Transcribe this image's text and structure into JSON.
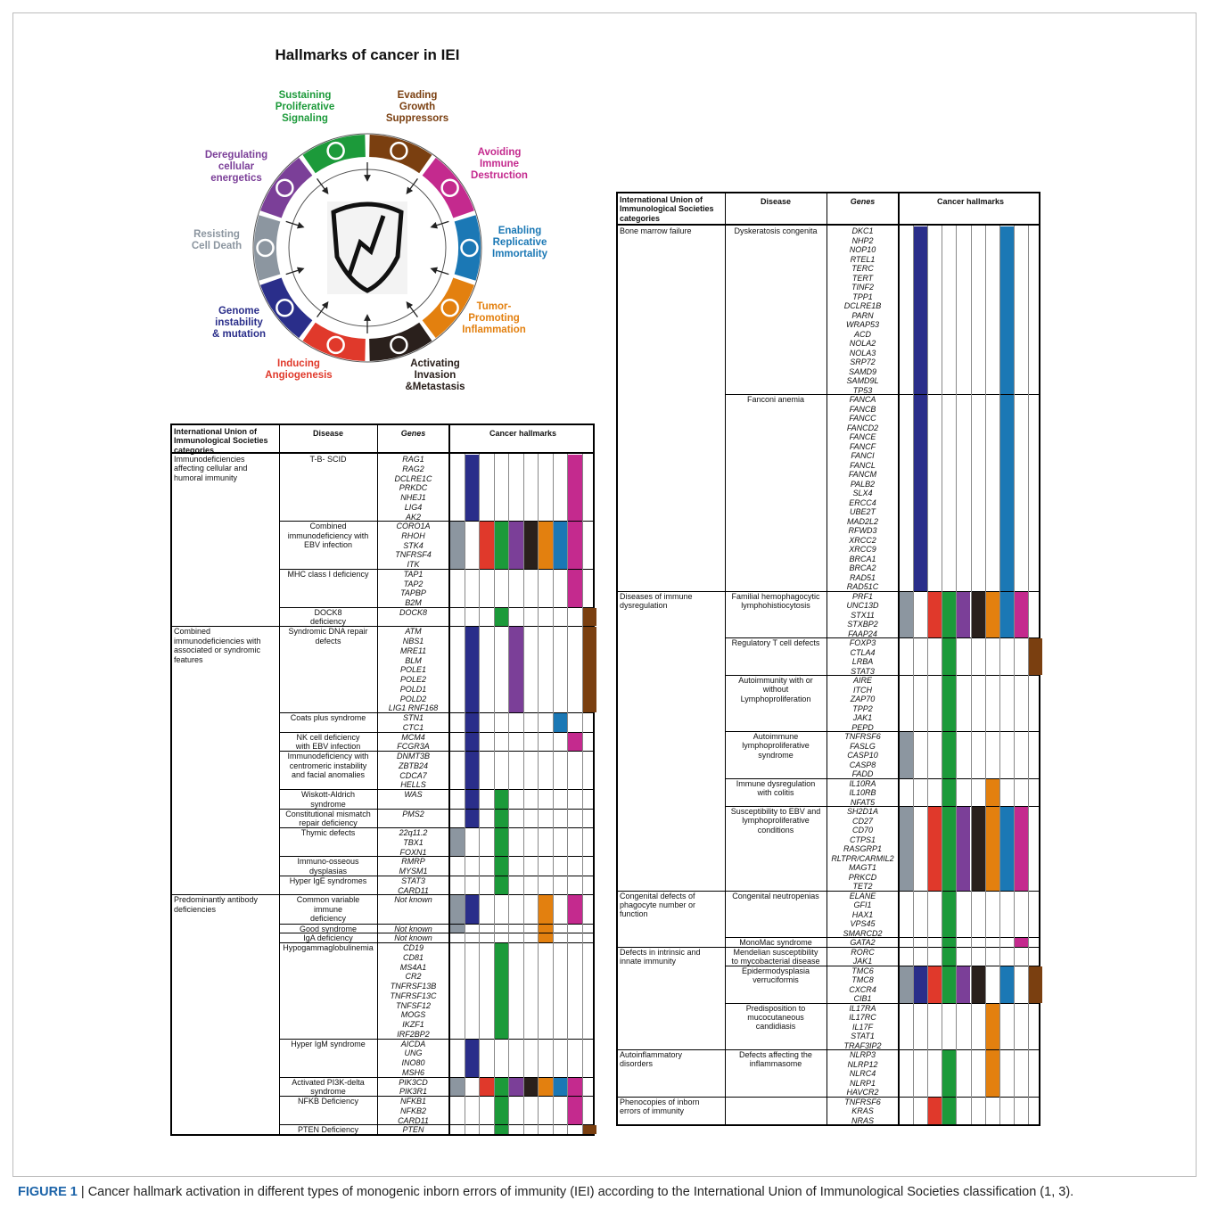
{
  "wheel": {
    "title": "Hallmarks of cancer in IEI",
    "hallmarks": [
      {
        "lines": [
          "Sustaining",
          "Proliferative",
          "Signaling"
        ],
        "color": "#1c9a3a"
      },
      {
        "lines": [
          "Evading",
          "Growth",
          "Suppressors"
        ],
        "color": "#7a3f10"
      },
      {
        "lines": [
          "Avoiding",
          "Immune",
          "Destruction"
        ],
        "color": "#c42a8e"
      },
      {
        "lines": [
          "Enabling",
          "Replicative",
          "Immortality"
        ],
        "color": "#1b78b5"
      },
      {
        "lines": [
          "Tumor-",
          "Promoting",
          "Inflammation"
        ],
        "color": "#e3800f"
      },
      {
        "lines": [
          "Activating",
          "Invasion",
          "&Metastasis"
        ],
        "color": "#2a201c"
      },
      {
        "lines": [
          "Inducing",
          "Angiogenesis"
        ],
        "color": "#e0392b"
      },
      {
        "lines": [
          "Genome",
          "instability",
          "& mutation"
        ],
        "color": "#2a2e8a"
      },
      {
        "lines": [
          "Resisting",
          "Cell Death"
        ],
        "color": "#8c96a0"
      },
      {
        "lines": [
          "Deregulating",
          "cellular",
          "energetics"
        ],
        "color": "#7b3f98"
      }
    ]
  },
  "hallmark_columns": [
    "#8c96a0",
    "#2a2e8a",
    "#e0392b",
    "#1c9a3a",
    "#7b3f98",
    "#2a201c",
    "#e3800f",
    "#1b78b5",
    "#c42a8e",
    "#7a3f10"
  ],
  "tables": [
    {
      "header": {
        "category": [
          "International Union of",
          "Immunological Societies",
          "categories"
        ],
        "disease": "Disease",
        "genes": "Genes",
        "hallmarks": "Cancer hallmarks"
      },
      "groups": [
        {
          "category": [
            "Immunodeficiencies",
            "affecting cellular and",
            "humoral immunity"
          ],
          "diseases": [
            {
              "disease": [
                "T-B- SCID"
              ],
              "genes": [
                "RAG1",
                "RAG2",
                "DCLRE1C",
                "PRKDC",
                "NHEJ1",
                "LIG4",
                "AK2"
              ],
              "hallmarks": [
                "#2a2e8a",
                "#c42a8e"
              ]
            },
            {
              "disease": [
                "Combined",
                "immunodeficiency with",
                "EBV infection"
              ],
              "genes": [
                "CORO1A",
                "RHOH",
                "STK4",
                "TNFRSF4",
                "ITK"
              ],
              "hallmarks": [
                "#8c96a0",
                "#e0392b",
                "#1c9a3a",
                "#7b3f98",
                "#2a201c",
                "#e3800f",
                "#1b78b5",
                "#c42a8e"
              ]
            },
            {
              "disease": [
                "MHC class I deficiency"
              ],
              "genes": [
                "TAP1",
                "TAP2",
                "TAPBP",
                "B2M"
              ],
              "hallmarks": [
                "#c42a8e"
              ]
            },
            {
              "disease": [
                "DOCK8",
                "deficiency"
              ],
              "genes": [
                "DOCK8"
              ],
              "hallmarks": [
                "#1c9a3a",
                "#7a3f10"
              ]
            }
          ]
        },
        {
          "category": [
            "Combined",
            "immunodeficiencies with",
            "associated or syndromic",
            "features"
          ],
          "diseases": [
            {
              "disease": [
                "Syndromic DNA repair",
                "defects"
              ],
              "genes": [
                "ATM",
                "NBS1",
                "MRE11",
                "BLM",
                "POLE1",
                "POLE2",
                "POLD1",
                "POLD2",
                "LIG1 RNF168"
              ],
              "hallmarks": [
                "#2a2e8a",
                "#7b3f98",
                "#7a3f10"
              ]
            },
            {
              "disease": [
                "Coats plus syndrome"
              ],
              "genes": [
                "STN1",
                "CTC1"
              ],
              "hallmarks": [
                "#2a2e8a",
                "#1b78b5"
              ]
            },
            {
              "disease": [
                "NK cell deficiency",
                "with EBV infection"
              ],
              "genes": [
                "MCM4",
                "FCGR3A"
              ],
              "hallmarks": [
                "#2a2e8a",
                "#c42a8e"
              ]
            },
            {
              "disease": [
                "Immunodeficiency with",
                "centromeric instability",
                "and facial anomalies"
              ],
              "genes": [
                "DNMT3B",
                "ZBTB24",
                "CDCA7",
                "HELLS"
              ],
              "hallmarks": [
                "#2a2e8a"
              ]
            },
            {
              "disease": [
                "Wiskott-Aldrich",
                "syndrome"
              ],
              "genes": [
                "WAS"
              ],
              "hallmarks": [
                "#2a2e8a",
                "#1c9a3a"
              ]
            },
            {
              "disease": [
                "Constitutional mismatch",
                "repair deficiency"
              ],
              "genes": [
                "PMS2"
              ],
              "hallmarks": [
                "#2a2e8a",
                "#1c9a3a"
              ]
            },
            {
              "disease": [
                "Thymic defects"
              ],
              "genes": [
                "22q11.2",
                "TBX1",
                "FOXN1"
              ],
              "hallmarks": [
                "#8c96a0",
                "#1c9a3a"
              ]
            },
            {
              "disease": [
                "Immuno-osseous",
                "dysplasias"
              ],
              "genes": [
                "RMRP",
                "MYSM1"
              ],
              "hallmarks": [
                "#1c9a3a"
              ]
            },
            {
              "disease": [
                "Hyper IgE syndromes"
              ],
              "genes": [
                "STAT3",
                "CARD11"
              ],
              "hallmarks": [
                "#1c9a3a"
              ]
            }
          ]
        },
        {
          "category": [
            "Predominantly antibody",
            "deficiencies"
          ],
          "diseases": [
            {
              "disease": [
                "Common variable",
                "immune",
                "deficiency"
              ],
              "genes": [
                "Not known"
              ],
              "hallmarks": [
                "#8c96a0",
                "#2a2e8a",
                "#e3800f",
                "#c42a8e"
              ]
            },
            {
              "disease": [
                "Good syndrome"
              ],
              "genes": [
                "Not known"
              ],
              "hallmarks": [
                "#8c96a0",
                "#e3800f"
              ]
            },
            {
              "disease": [
                "IgA deficiency"
              ],
              "genes": [
                "Not known"
              ],
              "hallmarks": [
                "#e3800f"
              ]
            },
            {
              "disease": [
                "Hypogammaglobulinemia"
              ],
              "genes": [
                "CD19",
                "CD81",
                "MS4A1",
                "CR2",
                "TNFRSF13B",
                "TNFRSF13C",
                "TNFSF12",
                "MOGS",
                "IKZF1",
                "IRF2BP2"
              ],
              "hallmarks": [
                "#1c9a3a"
              ]
            },
            {
              "disease": [
                "Hyper IgM syndrome"
              ],
              "genes": [
                "AICDA",
                "UNG",
                "INO80",
                "MSH6"
              ],
              "hallmarks": [
                "#2a2e8a"
              ]
            },
            {
              "disease": [
                "Activated PI3K-delta",
                "syndrome"
              ],
              "genes": [
                "PIK3CD",
                "PIK3R1"
              ],
              "hallmarks": [
                "#8c96a0",
                "#e0392b",
                "#1c9a3a",
                "#7b3f98",
                "#2a201c",
                "#e3800f",
                "#1b78b5",
                "#c42a8e"
              ]
            },
            {
              "disease": [
                "NFKB Deficiency"
              ],
              "genes": [
                "NFKB1",
                "NFKB2",
                "CARD11"
              ],
              "hallmarks": [
                "#1c9a3a",
                "#c42a8e"
              ]
            },
            {
              "disease": [
                "PTEN Deficiency"
              ],
              "genes": [
                "PTEN"
              ],
              "hallmarks": [
                "#1c9a3a",
                "#7a3f10"
              ]
            }
          ]
        }
      ]
    },
    {
      "header": {
        "category": [
          "International Union of",
          "Immunological Societies",
          "categories"
        ],
        "disease": "Disease",
        "genes": "Genes",
        "hallmarks": "Cancer hallmarks"
      },
      "groups": [
        {
          "category": [
            "Bone marrow failure"
          ],
          "diseases": [
            {
              "disease": [
                "Dyskeratosis congenita"
              ],
              "genes": [
                "DKC1",
                "NHP2",
                "NOP10",
                "RTEL1",
                "TERC",
                "TERT",
                "TINF2",
                "TPP1",
                "DCLRE1B",
                "PARN",
                "WRAP53",
                "ACD",
                "NOLA2",
                "NOLA3",
                "SRP72",
                "SAMD9",
                "SAMD9L",
                "TP53"
              ],
              "hallmarks": [
                "#2a2e8a",
                "#1b78b5"
              ]
            },
            {
              "disease": [
                "Fanconi anemia"
              ],
              "genes": [
                "FANCA",
                "FANCB",
                "FANCC",
                "FANCD2",
                "FANCE",
                "FANCF",
                "FANCI",
                "FANCL",
                "FANCM",
                "PALB2",
                "SLX4",
                "ERCC4",
                "UBE2T",
                "MAD2L2",
                "RFWD3",
                "XRCC2",
                "XRCC9",
                "BRCA1",
                "BRCA2",
                "RAD51",
                "RAD51C"
              ],
              "hallmarks": [
                "#2a2e8a",
                "#1b78b5"
              ]
            }
          ]
        },
        {
          "category": [
            "Diseases of immune",
            "dysregulation"
          ],
          "diseases": [
            {
              "disease": [
                "Familial hemophagocytic",
                "lymphohistiocytosis"
              ],
              "genes": [
                "PRF1",
                "UNC13D",
                "STX11",
                "STXBP2",
                "FAAP24"
              ],
              "hallmarks": [
                "#8c96a0",
                "#e0392b",
                "#1c9a3a",
                "#7b3f98",
                "#2a201c",
                "#e3800f",
                "#1b78b5",
                "#c42a8e"
              ]
            },
            {
              "disease": [
                "Regulatory T cell defects"
              ],
              "genes": [
                "FOXP3",
                "CTLA4",
                "LRBA",
                "STAT3"
              ],
              "hallmarks": [
                "#1c9a3a",
                "#7a3f10"
              ]
            },
            {
              "disease": [
                "Autoimmunity with or",
                "without",
                "Lymphoproliferation"
              ],
              "genes": [
                "AIRE",
                "ITCH",
                "ZAP70",
                "TPP2",
                "JAK1",
                "PEPD"
              ],
              "hallmarks": [
                "#1c9a3a"
              ]
            },
            {
              "disease": [
                "Autoimmune",
                "lymphoproliferative",
                "syndrome"
              ],
              "genes": [
                "TNFRSF6",
                "FASLG",
                "CASP10",
                "CASP8",
                "FADD"
              ],
              "hallmarks": [
                "#8c96a0",
                "#1c9a3a"
              ]
            },
            {
              "disease": [
                "Immune dysregulation",
                "with colitis"
              ],
              "genes": [
                "IL10RA",
                "IL10RB",
                "NFAT5"
              ],
              "hallmarks": [
                "#1c9a3a",
                "#e3800f"
              ]
            },
            {
              "disease": [
                "Susceptibility to EBV and",
                "lymphoproliferative",
                "conditions"
              ],
              "genes": [
                "SH2D1A",
                "CD27",
                "CD70",
                "CTPS1",
                "RASGRP1",
                "RLTPR/CARMIL2",
                "MAGT1",
                "PRKCD",
                "TET2"
              ],
              "hallmarks": [
                "#8c96a0",
                "#e0392b",
                "#1c9a3a",
                "#7b3f98",
                "#2a201c",
                "#e3800f",
                "#1b78b5",
                "#c42a8e"
              ]
            }
          ]
        },
        {
          "category": [
            "Congenital defects of",
            "phagocyte number or",
            "function"
          ],
          "diseases": [
            {
              "disease": [
                "Congenital neutropenias"
              ],
              "genes": [
                "ELANE",
                "GFI1",
                "HAX1",
                "VPS45",
                "SMARCD2"
              ],
              "hallmarks": [
                "#1c9a3a"
              ]
            },
            {
              "disease": [
                "MonoMac syndrome"
              ],
              "genes": [
                "GATA2"
              ],
              "hallmarks": [
                "#1c9a3a",
                "#c42a8e"
              ]
            }
          ]
        },
        {
          "category": [
            "Defects in intrinsic and",
            "innate immunity"
          ],
          "diseases": [
            {
              "disease": [
                "Mendelian susceptibility",
                "to mycobacterial disease"
              ],
              "genes": [
                "RORC",
                "JAK1"
              ],
              "hallmarks": [
                "#1c9a3a"
              ]
            },
            {
              "disease": [
                "Epidermodysplasia",
                "verruciformis"
              ],
              "genes": [
                "TMC6",
                "TMC8",
                "CXCR4",
                "CIB1"
              ],
              "hallmarks": [
                "#8c96a0",
                "#2a2e8a",
                "#e0392b",
                "#1c9a3a",
                "#7b3f98",
                "#2a201c",
                "#1b78b5",
                "#7a3f10"
              ]
            },
            {
              "disease": [
                "Predisposition to",
                "mucocutaneous",
                "candidiasis"
              ],
              "genes": [
                "IL17RA",
                "IL17RC",
                "IL17F",
                "STAT1",
                "TRAF3IP2"
              ],
              "hallmarks": [
                "#e3800f"
              ]
            }
          ]
        },
        {
          "category": [
            "Autoinflammatory",
            "disorders"
          ],
          "diseases": [
            {
              "disease": [
                "Defects affecting the",
                "inflammasome"
              ],
              "genes": [
                "NLRP3",
                "NLRP12",
                "NLRC4",
                "NLRP1",
                "HAVCR2"
              ],
              "hallmarks": [
                "#1c9a3a",
                "#e3800f"
              ]
            }
          ]
        },
        {
          "category": [
            "Phenocopies of inborn",
            "errors of immunity"
          ],
          "diseases": [
            {
              "genes": [
                "TNFRSF6",
                "KRAS",
                "NRAS"
              ],
              "hallmarks": [
                "#e0392b",
                "#1c9a3a"
              ]
            }
          ]
        }
      ]
    }
  ],
  "caption": {
    "label": "FIGURE 1",
    "text": "| Cancer hallmark activation in different types of monogenic inborn errors of immunity (IEI) according to the International Union of Immunological Societies classification (1, 3)."
  }
}
